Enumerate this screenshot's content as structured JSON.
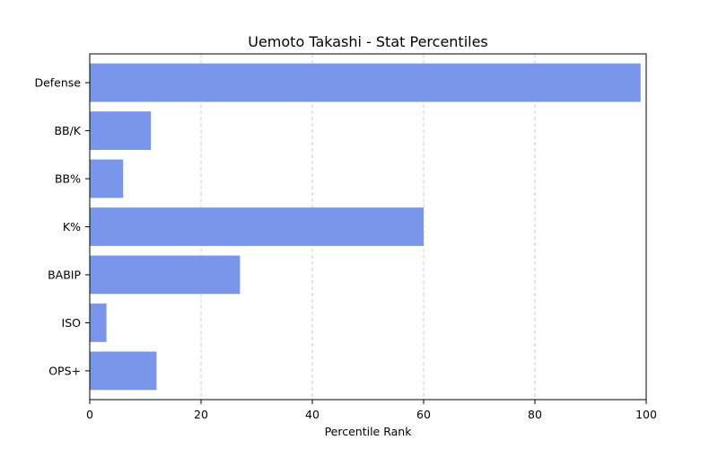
{
  "chart_data": {
    "type": "bar",
    "orientation": "horizontal",
    "title": "Uemoto Takashi - Stat Percentiles",
    "xlabel": "Percentile Rank",
    "ylabel": "",
    "categories": [
      "Defense",
      "BB/K",
      "BB%",
      "K%",
      "BABIP",
      "ISO",
      "OPS+"
    ],
    "values": [
      99,
      11,
      6,
      60,
      27,
      3,
      12
    ],
    "xlim": [
      0,
      100
    ],
    "xticks": [
      0,
      20,
      40,
      60,
      80,
      100
    ],
    "grid": "x-dashed",
    "bar_color": "#7996EA",
    "legend": "none"
  }
}
